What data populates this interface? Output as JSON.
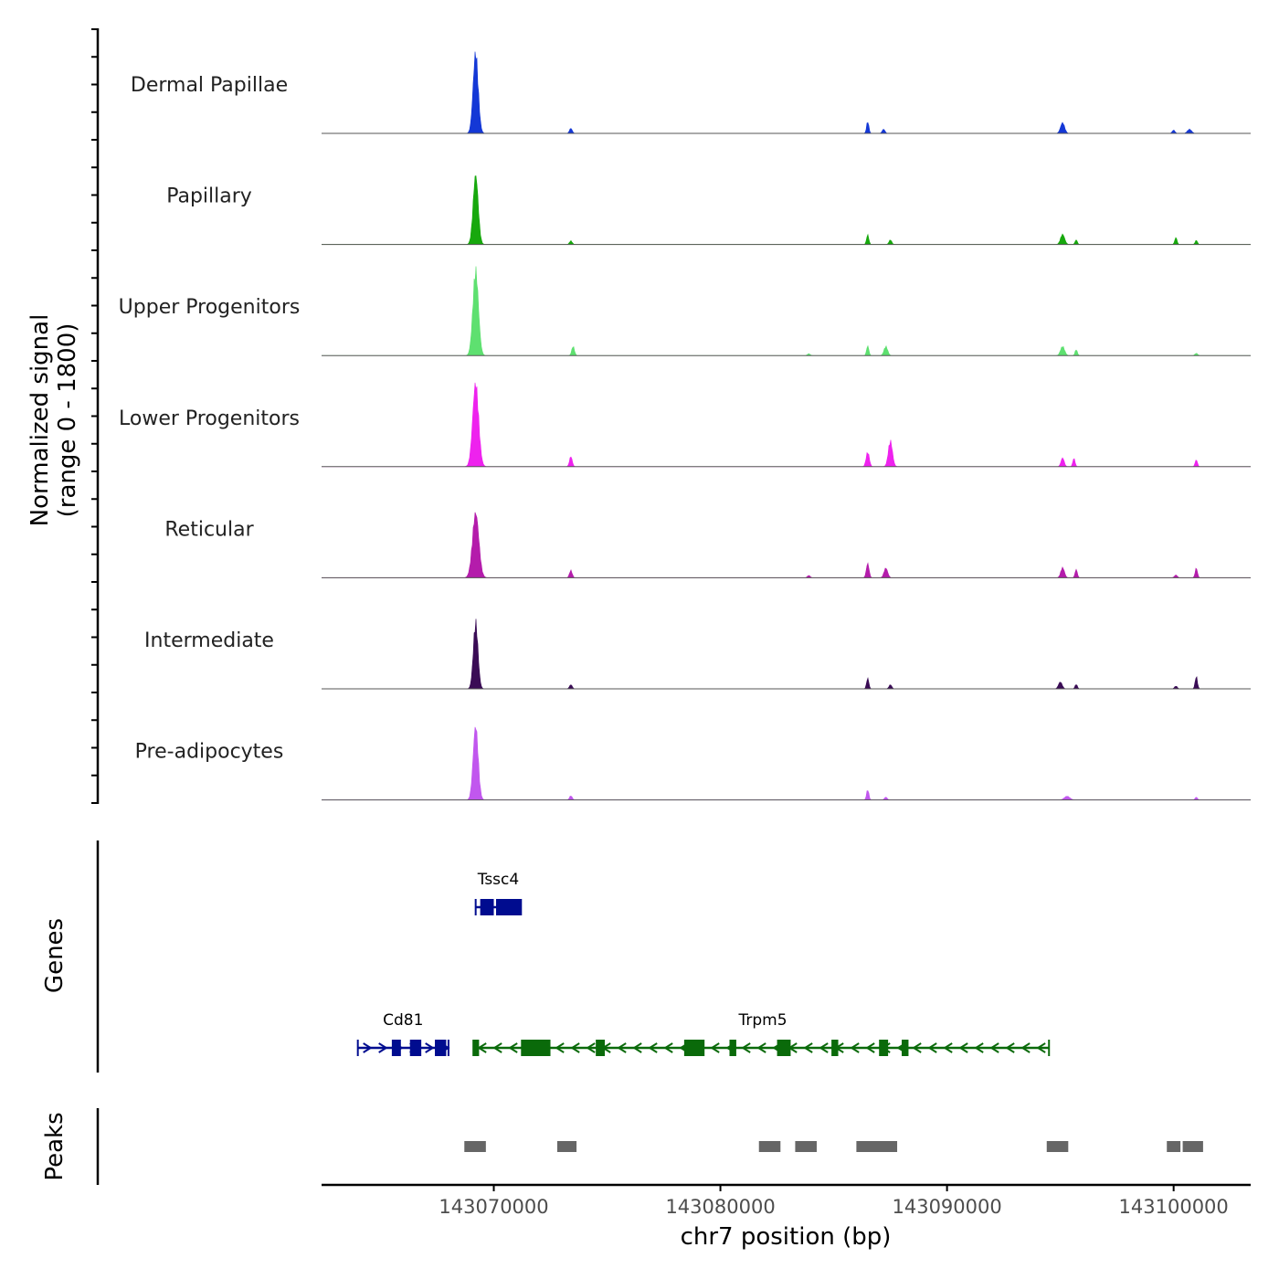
{
  "chart_data": {
    "type": "area",
    "title": "",
    "xlabel": "chr7 position (bp)",
    "ylabel_line1": "Normalized signal",
    "ylabel_line2": "(range 0 - 1800)",
    "ylim": [
      0,
      1800
    ],
    "xlim": [
      143062400,
      143103400
    ],
    "x_ticks": [
      143070000,
      143080000,
      143090000,
      143100000
    ],
    "x_tick_labels": [
      "143070000",
      "143080000",
      "143090000",
      "143100000"
    ],
    "tracks": [
      {
        "name": "Dermal Papillae",
        "color": "#1438d6",
        "peaks": [
          [
            143069200,
            1750,
            110
          ],
          [
            143073400,
            110,
            60
          ],
          [
            143086500,
            260,
            50
          ],
          [
            143087200,
            90,
            60
          ],
          [
            143095100,
            230,
            90
          ],
          [
            143100700,
            90,
            90
          ],
          [
            143100000,
            70,
            60
          ]
        ]
      },
      {
        "name": "Papillary",
        "color": "#17a80d",
        "peaks": [
          [
            143069200,
            1500,
            110
          ],
          [
            143073400,
            80,
            60
          ],
          [
            143086500,
            210,
            50
          ],
          [
            143087500,
            100,
            60
          ],
          [
            143095100,
            220,
            90
          ],
          [
            143095700,
            100,
            50
          ],
          [
            143100100,
            150,
            50
          ],
          [
            143101000,
            90,
            50
          ]
        ]
      },
      {
        "name": "Upper Progenitors",
        "color": "#5ee070",
        "peaks": [
          [
            143069200,
            1850,
            120
          ],
          [
            143073500,
            200,
            60
          ],
          [
            143083900,
            40,
            60
          ],
          [
            143086500,
            210,
            50
          ],
          [
            143087300,
            200,
            80
          ],
          [
            143095100,
            200,
            90
          ],
          [
            143095700,
            130,
            50
          ],
          [
            143101000,
            50,
            60
          ]
        ]
      },
      {
        "name": "Lower Progenitors",
        "color": "#ee22ee",
        "peaks": [
          [
            143069200,
            1800,
            130
          ],
          [
            143073400,
            220,
            60
          ],
          [
            143086500,
            320,
            70
          ],
          [
            143087500,
            560,
            90
          ],
          [
            143095100,
            190,
            70
          ],
          [
            143095600,
            180,
            50
          ],
          [
            143101000,
            150,
            50
          ]
        ]
      },
      {
        "name": "Reticular",
        "color": "#b41cab",
        "peaks": [
          [
            143069200,
            1400,
            140
          ],
          [
            143073400,
            160,
            60
          ],
          [
            143083900,
            50,
            60
          ],
          [
            143086500,
            310,
            60
          ],
          [
            143087300,
            210,
            80
          ],
          [
            143095100,
            220,
            80
          ],
          [
            143095700,
            180,
            50
          ],
          [
            143101000,
            210,
            50
          ],
          [
            143100100,
            60,
            60
          ]
        ]
      },
      {
        "name": "Intermediate",
        "color": "#3a0c55",
        "peaks": [
          [
            143069200,
            1450,
            100
          ],
          [
            143073400,
            90,
            60
          ],
          [
            143086500,
            230,
            50
          ],
          [
            143087500,
            90,
            60
          ],
          [
            143095000,
            150,
            80
          ],
          [
            143095700,
            100,
            50
          ],
          [
            143101000,
            270,
            50
          ],
          [
            143100100,
            60,
            60
          ]
        ]
      },
      {
        "name": "Pre-adipocytes",
        "color": "#c157ee",
        "peaks": [
          [
            143069200,
            1600,
            110
          ],
          [
            143073400,
            90,
            60
          ],
          [
            143086500,
            230,
            50
          ],
          [
            143087300,
            60,
            60
          ],
          [
            143095300,
            80,
            120
          ],
          [
            143101000,
            60,
            50
          ]
        ]
      }
    ],
    "genes_label": "Genes",
    "genes": [
      {
        "name": "Tssc4",
        "color": "#000c8f",
        "start": 143069200,
        "end": 143071200,
        "strand": "+",
        "row": 1,
        "exons": [
          [
            143069400,
            143070000
          ],
          [
            143070100,
            143071200
          ]
        ]
      },
      {
        "name": "Cd81",
        "color": "#000c8f",
        "start": 143064000,
        "end": 143068000,
        "strand": "+",
        "row": 2,
        "exons": [
          [
            143065500,
            143065900
          ],
          [
            143066300,
            143066800
          ],
          [
            143067400,
            143067900
          ]
        ]
      },
      {
        "name": "Trpm5",
        "color": "#0a6a0a",
        "start": 143069100,
        "end": 143094500,
        "strand": "-",
        "row": 2,
        "exons": [
          [
            143069100,
            143069350
          ],
          [
            143071200,
            143072500
          ],
          [
            143074500,
            143074900
          ],
          [
            143078400,
            143079300
          ],
          [
            143080400,
            143080700
          ],
          [
            143082500,
            143083100
          ],
          [
            143084900,
            143085200
          ],
          [
            143087000,
            143087400
          ],
          [
            143088000,
            143088300
          ]
        ]
      }
    ],
    "peaks_label": "Peaks",
    "peak_regions": [
      [
        143068700,
        143069650
      ],
      [
        143072800,
        143073650
      ],
      [
        143081700,
        143082650
      ],
      [
        143083300,
        143084250
      ],
      [
        143086000,
        143087800
      ],
      [
        143094400,
        143095350
      ],
      [
        143099700,
        143100300
      ],
      [
        143100400,
        143101300
      ]
    ]
  }
}
